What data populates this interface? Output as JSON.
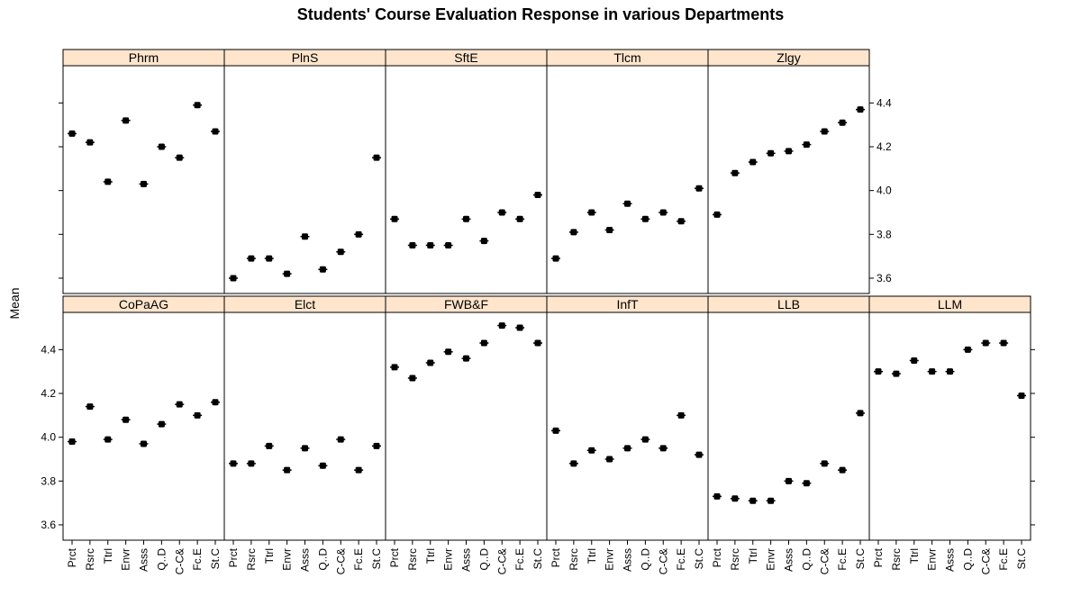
{
  "chart_data": {
    "type": "scatter",
    "title": "Students' Course Evaluation Response in various Departments",
    "ylabel": "Mean",
    "xlabel": "",
    "ylim": [
      3.53,
      4.57
    ],
    "yticks": [
      3.6,
      3.8,
      4.0,
      4.2,
      4.4
    ],
    "ytick_labels": [
      "3.6",
      "3.8",
      "4.0",
      "4.2",
      "4.4"
    ],
    "categories": [
      "Prct",
      "Rsrc",
      "Ttrl",
      "Envr",
      "Asss",
      "Q..D",
      "C-C&",
      "Fc.E",
      "St.C"
    ],
    "grid": false,
    "strip_color": "#ffe5cc",
    "point_color": "#000000",
    "panels": [
      {
        "name": "CoPaAG",
        "values": [
          3.98,
          4.14,
          3.99,
          4.08,
          3.97,
          4.06,
          4.15,
          4.1,
          4.16
        ]
      },
      {
        "name": "Elct",
        "values": [
          3.88,
          3.88,
          3.96,
          3.85,
          3.95,
          3.87,
          3.99,
          3.85,
          3.96
        ]
      },
      {
        "name": "FWB&F",
        "values": [
          4.32,
          4.27,
          4.34,
          4.39,
          4.36,
          4.43,
          4.51,
          4.5,
          4.43
        ]
      },
      {
        "name": "InfT",
        "values": [
          4.03,
          3.88,
          3.94,
          3.9,
          3.95,
          3.99,
          3.95,
          4.1,
          3.92
        ]
      },
      {
        "name": "LLB",
        "values": [
          3.73,
          3.72,
          3.71,
          3.71,
          3.8,
          3.79,
          3.88,
          3.85,
          4.11
        ]
      },
      {
        "name": "LLM",
        "values": [
          4.3,
          4.29,
          4.35,
          4.3,
          4.3,
          4.4,
          4.43,
          4.43,
          4.19
        ]
      },
      {
        "name": "Phrm",
        "values": [
          4.26,
          4.22,
          4.04,
          4.32,
          4.03,
          4.2,
          4.15,
          4.39,
          4.27
        ]
      },
      {
        "name": "PlnS",
        "values": [
          3.6,
          3.69,
          3.69,
          3.62,
          3.79,
          3.64,
          3.72,
          3.8,
          4.15
        ]
      },
      {
        "name": "SftE",
        "values": [
          3.87,
          3.75,
          3.75,
          3.75,
          3.87,
          3.77,
          3.9,
          3.87,
          3.98
        ]
      },
      {
        "name": "Tlcm",
        "values": [
          3.69,
          3.81,
          3.9,
          3.82,
          3.94,
          3.87,
          3.9,
          3.86,
          4.01
        ]
      },
      {
        "name": "Zlgy",
        "values": [
          3.89,
          4.08,
          4.13,
          4.17,
          4.18,
          4.21,
          4.27,
          4.31,
          4.37
        ]
      }
    ]
  }
}
